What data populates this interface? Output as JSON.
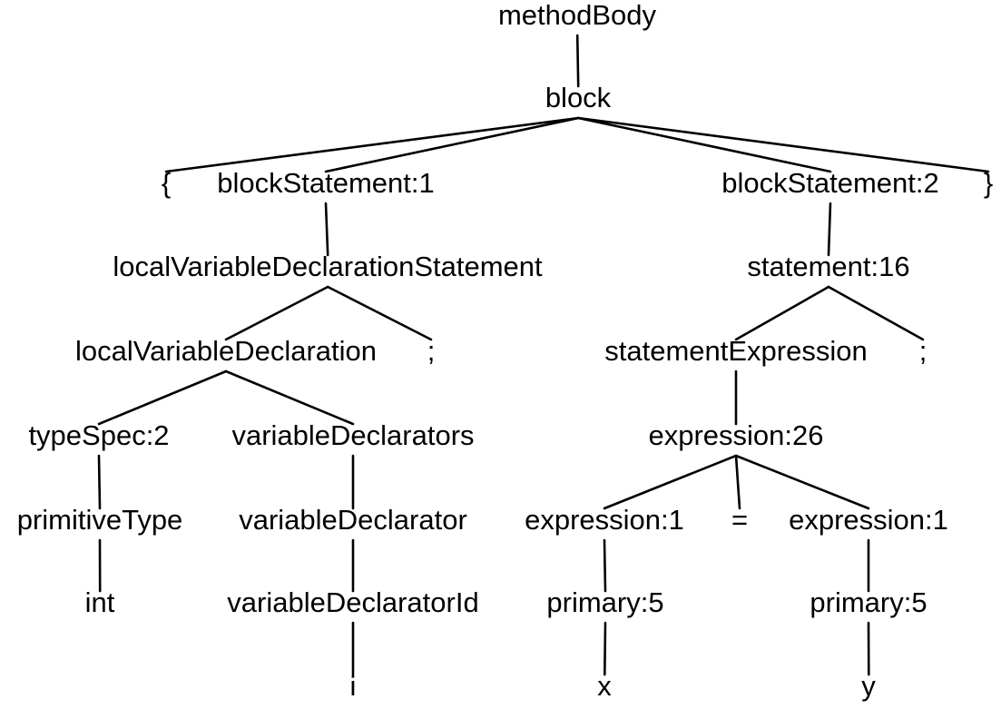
{
  "diagram": {
    "line_color": "#000000",
    "text_color": "#000000",
    "background": "#ffffff",
    "nodes": {
      "methodBody": "methodBody",
      "block": "block",
      "brace_open": "{",
      "blockStatement1": "blockStatement:1",
      "blockStatement2": "blockStatement:2",
      "brace_close": "}",
      "localVarDeclStmt": "localVariableDeclarationStatement",
      "statement16": "statement:16",
      "localVarDecl": "localVariableDeclaration",
      "semicolon1": ";",
      "statementExpression": "statementExpression",
      "semicolon2": ";",
      "typeSpec2": "typeSpec:2",
      "variableDeclarators": "variableDeclarators",
      "expression26": "expression:26",
      "primitiveType": "primitiveType",
      "variableDeclarator": "variableDeclarator",
      "expression1a": "expression:1",
      "equals": "=",
      "expression1b": "expression:1",
      "int": "int",
      "variableDeclaratorId": "variableDeclaratorId",
      "primary5a": "primary:5",
      "primary5b": "primary:5",
      "i": "i",
      "x": "x",
      "y": "y"
    },
    "edges": [
      [
        "methodBody",
        "block"
      ],
      [
        "block",
        "brace_open"
      ],
      [
        "block",
        "blockStatement1"
      ],
      [
        "block",
        "blockStatement2"
      ],
      [
        "block",
        "brace_close"
      ],
      [
        "blockStatement1",
        "localVarDeclStmt"
      ],
      [
        "blockStatement2",
        "statement16"
      ],
      [
        "localVarDeclStmt",
        "localVarDecl"
      ],
      [
        "localVarDeclStmt",
        "semicolon1"
      ],
      [
        "statement16",
        "statementExpression"
      ],
      [
        "statement16",
        "semicolon2"
      ],
      [
        "localVarDecl",
        "typeSpec2"
      ],
      [
        "localVarDecl",
        "variableDeclarators"
      ],
      [
        "statementExpression",
        "expression26"
      ],
      [
        "typeSpec2",
        "primitiveType"
      ],
      [
        "variableDeclarators",
        "variableDeclarator"
      ],
      [
        "expression26",
        "expression1a"
      ],
      [
        "expression26",
        "equals"
      ],
      [
        "expression26",
        "expression1b"
      ],
      [
        "primitiveType",
        "int"
      ],
      [
        "variableDeclarator",
        "variableDeclaratorId"
      ],
      [
        "expression1a",
        "primary5a"
      ],
      [
        "expression1b",
        "primary5b"
      ],
      [
        "variableDeclaratorId",
        "i"
      ],
      [
        "primary5a",
        "x"
      ],
      [
        "primary5b",
        "y"
      ]
    ]
  }
}
